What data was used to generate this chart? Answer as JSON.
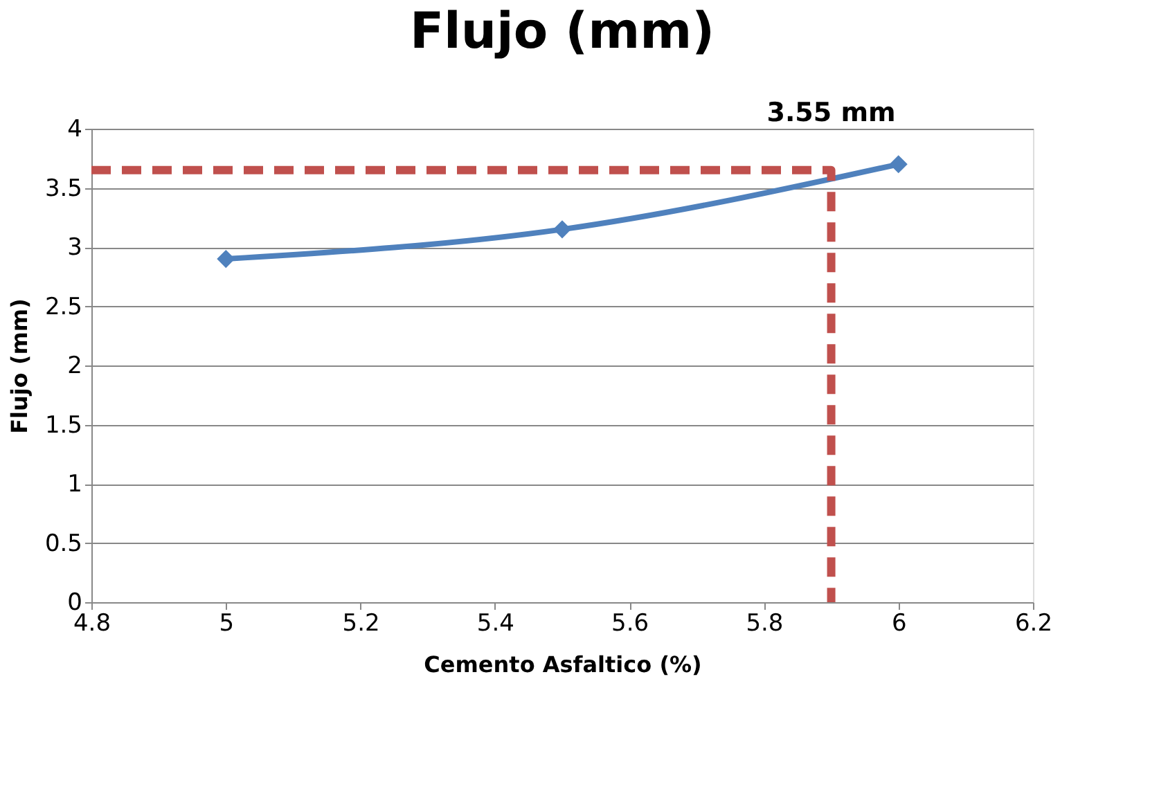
{
  "chart_data": {
    "type": "line",
    "title": "Flujo (mm)",
    "xlabel": "Cemento Asfaltico (%)",
    "ylabel": "Flujo (mm)",
    "xlim": [
      4.8,
      6.2
    ],
    "xticks": [
      4.8,
      5,
      5.2,
      5.4,
      5.6,
      5.8,
      6,
      6.2
    ],
    "ylim": [
      0,
      4
    ],
    "yticks": [
      0,
      0.5,
      1,
      1.5,
      2,
      2.5,
      3,
      3.5,
      4
    ],
    "grid": "y",
    "series": [
      {
        "color": "#4f81bd",
        "marker": "diamond",
        "line_style": "solid",
        "x": [
          5,
          5.5,
          6
        ],
        "values": [
          2.9,
          3.15,
          3.7
        ]
      },
      {
        "type": "line",
        "color": "#c0504d",
        "marker": "none",
        "line_style": "dashed",
        "x": [
          4.8,
          5.9,
          5.9
        ],
        "values": [
          3.65,
          3.65,
          0
        ]
      }
    ],
    "annotations": [
      {
        "text": "3.55 mm",
        "x": 5.9,
        "y": 3.55
      }
    ]
  }
}
